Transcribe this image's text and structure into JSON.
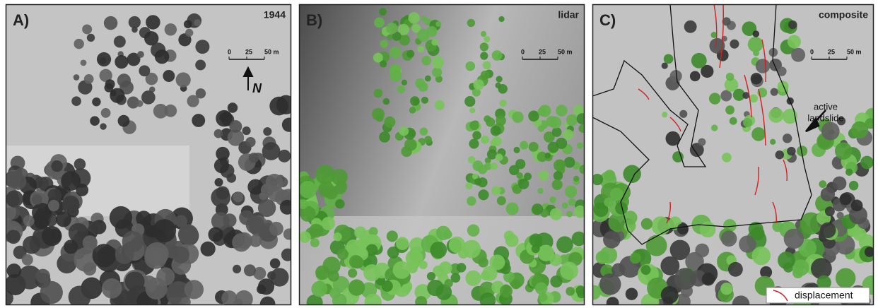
{
  "panels": [
    {
      "label": "A)",
      "title": "1944",
      "scale": [
        "0",
        "25",
        "50 m"
      ],
      "north": "N"
    },
    {
      "label": "B)",
      "title": "lidar",
      "scale": [
        "0",
        "25",
        "50 m"
      ]
    },
    {
      "label": "C)",
      "title": "composite",
      "scale": [
        "0",
        "25",
        "50 m"
      ],
      "annotation": [
        "active",
        "landslide"
      ],
      "legend": "displacement"
    }
  ]
}
